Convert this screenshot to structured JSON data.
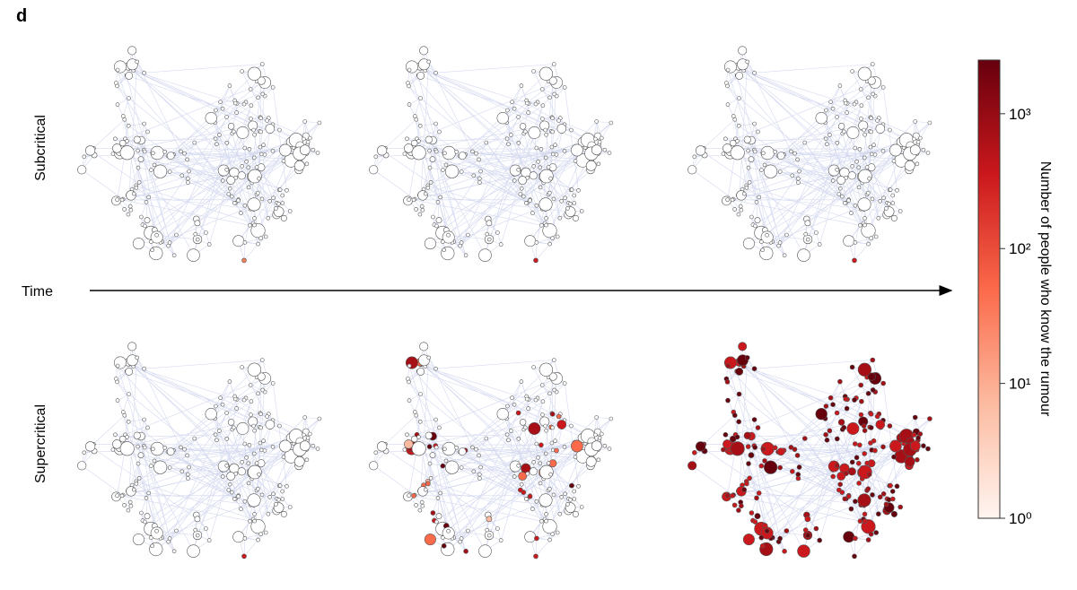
{
  "panel_label": "d",
  "rows": [
    "Subcritical",
    "Supercritical"
  ],
  "time_label": "Time",
  "colorbar": {
    "title": "Number of people who know the rumour",
    "scale": "log",
    "lim": [
      1,
      2500
    ],
    "ticks": [
      {
        "value": 1,
        "label": "10⁰"
      },
      {
        "value": 10,
        "label": "10¹"
      },
      {
        "value": 100,
        "label": "10²"
      },
      {
        "value": 1000,
        "label": "10³"
      }
    ]
  }
}
